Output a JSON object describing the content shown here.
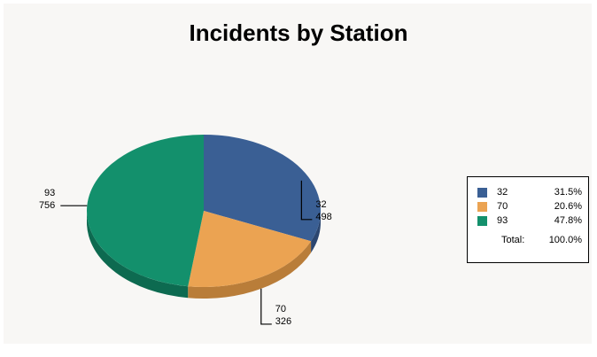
{
  "chart_data": {
    "type": "pie",
    "title": "Incidents by Station",
    "categories": [
      "32",
      "70",
      "93"
    ],
    "values": [
      498,
      326,
      756
    ],
    "percentages": [
      "31.5%",
      "20.6%",
      "47.8%"
    ],
    "colors": [
      "#3a5f94",
      "#eba352",
      "#13906c"
    ],
    "side_colors": [
      "#2b4670",
      "#b97d39",
      "#0d6a50"
    ],
    "total_label": "Total:",
    "total_percentage": "100.0%",
    "three_d": true,
    "legend_position": "right"
  }
}
